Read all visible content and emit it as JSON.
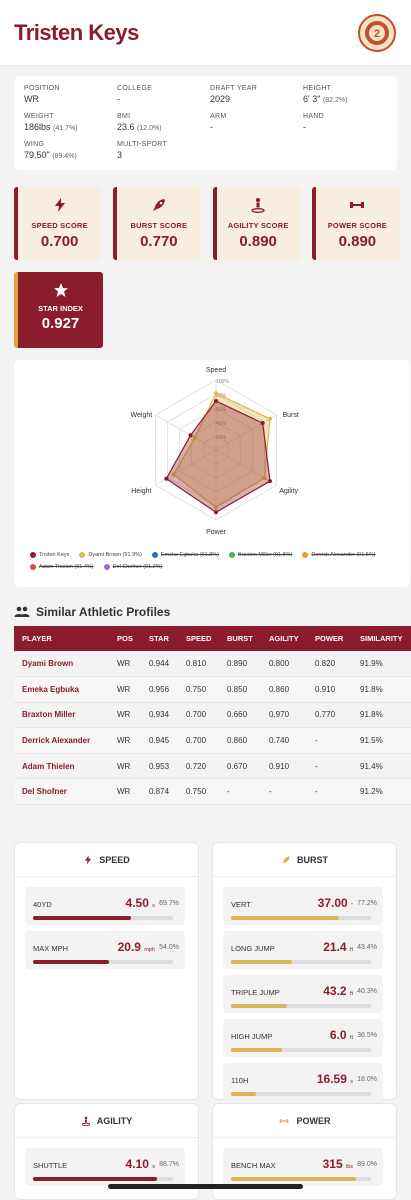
{
  "header": {
    "name": "Tristen Keys"
  },
  "info": [
    {
      "label": "POSITION",
      "value": "WR",
      "pct": ""
    },
    {
      "label": "COLLEGE",
      "value": "-",
      "pct": ""
    },
    {
      "label": "DRAFT YEAR",
      "value": "2029",
      "pct": ""
    },
    {
      "label": "HEIGHT",
      "value": "6' 3\"",
      "pct": "(82.2%)"
    },
    {
      "label": "WEIGHT",
      "value": "186lbs",
      "pct": "(41.7%)"
    },
    {
      "label": "BMI",
      "value": "23.6",
      "pct": "(12.0%)"
    },
    {
      "label": "ARM",
      "value": "-",
      "pct": ""
    },
    {
      "label": "HAND",
      "value": "-",
      "pct": ""
    },
    {
      "label": "WING",
      "value": "79.50\"",
      "pct": "(89.4%)"
    },
    {
      "label": "MULTI-SPORT",
      "value": "3",
      "pct": ""
    }
  ],
  "scores": [
    {
      "label": "SPEED SCORE",
      "value": "0.700",
      "icon": "bolt-icon"
    },
    {
      "label": "BURST SCORE",
      "value": "0.770",
      "icon": "rocket-icon"
    },
    {
      "label": "AGILITY SCORE",
      "value": "0.890",
      "icon": "agility-icon"
    },
    {
      "label": "POWER SCORE",
      "value": "0.890",
      "icon": "dumbbell-icon"
    }
  ],
  "star": {
    "label": "STAR INDEX",
    "value": "0.927",
    "icon": "star-icon"
  },
  "radar": {
    "axes": [
      "Speed",
      "Burst",
      "Agility",
      "Power",
      "Height",
      "Weight"
    ],
    "ring_labels": [
      "100%",
      "80%",
      "60%",
      "40%",
      "20%"
    ],
    "series": [
      {
        "name": "Tristen Keys",
        "color": "#8b1c2c",
        "values": [
          0.7,
          0.77,
          0.89,
          0.89,
          0.82,
          0.42
        ]
      },
      {
        "name": "Dyami Brown (91.9%)",
        "color": "#e0b84a",
        "values": [
          0.81,
          0.89,
          0.8,
          0.82,
          0.7,
          0.35
        ]
      }
    ]
  },
  "legend": {
    "row1": [
      {
        "label": "Tristen Keys",
        "color": "#8b1c2c",
        "off": false
      },
      {
        "label": "Dyami Brown (91.9%)",
        "color": "#e0b84a",
        "off": false
      },
      {
        "label": "Emeka Egbuka (91.8%)",
        "color": "#2f6db3",
        "off": true
      },
      {
        "label": "Braxton Miller (91.8%)",
        "color": "#4caf50",
        "off": true
      },
      {
        "label": "Derrick Alexander (91.5%)",
        "color": "#e89a2c",
        "off": true
      }
    ],
    "row2": [
      {
        "label": "Adam Thielen (91.4%)",
        "color": "#e04848",
        "off": true
      },
      {
        "label": "Del Shofner (91.2%)",
        "color": "#9b6dd1",
        "off": true
      }
    ]
  },
  "similar": {
    "title": "Similar Athletic Profiles",
    "columns": [
      "PLAYER",
      "POS",
      "STAR",
      "SPEED",
      "BURST",
      "AGILITY",
      "POWER",
      "SIMILARITY"
    ],
    "rows": [
      [
        "Dyami Brown",
        "WR",
        "0.944",
        "0.810",
        "0.890",
        "0.800",
        "0.820",
        "91.9%"
      ],
      [
        "Emeka Egbuka",
        "WR",
        "0.956",
        "0.750",
        "0.850",
        "0.860",
        "0.910",
        "91.8%"
      ],
      [
        "Braxton Miller",
        "WR",
        "0.934",
        "0.700",
        "0.660",
        "0.970",
        "0.770",
        "91.8%"
      ],
      [
        "Derrick Alexander",
        "WR",
        "0.945",
        "0.700",
        "0.860",
        "0.740",
        "-",
        "91.5%"
      ],
      [
        "Adam Thielen",
        "WR",
        "0.953",
        "0.720",
        "0.670",
        "0.910",
        "-",
        "91.4%"
      ],
      [
        "Del Shofner",
        "WR",
        "0.874",
        "0.750",
        "-",
        "-",
        "-",
        "91.2%"
      ]
    ]
  },
  "panels": {
    "speed": {
      "title": "SPEED",
      "color": "#8b1c2c",
      "metrics": [
        {
          "label": "40YD",
          "value": "4.50",
          "unit": "s",
          "pct": "69.7%",
          "fill": 0.697
        },
        {
          "label": "MAX MPH",
          "value": "20.9",
          "unit": "mph",
          "pct": "54.0%",
          "fill": 0.54
        }
      ]
    },
    "burst": {
      "title": "BURST",
      "color": "#d9b55a",
      "metrics": [
        {
          "label": "VERT",
          "value": "37.00",
          "unit": "\"",
          "pct": "77.2%",
          "fill": 0.772
        },
        {
          "label": "LONG JUMP",
          "value": "21.4",
          "unit": "ft",
          "pct": "43.4%",
          "fill": 0.434
        },
        {
          "label": "TRIPLE JUMP",
          "value": "43.2",
          "unit": "ft",
          "pct": "40.3%",
          "fill": 0.403
        },
        {
          "label": "HIGH JUMP",
          "value": "6.0",
          "unit": "ft",
          "pct": "36.5%",
          "fill": 0.365
        },
        {
          "label": "110H",
          "value": "16.59",
          "unit": "s",
          "pct": "18.0%",
          "fill": 0.18
        }
      ]
    },
    "agility": {
      "title": "AGILITY",
      "color": "#8b1c2c",
      "metrics": [
        {
          "label": "SHUTTLE",
          "value": "4.10",
          "unit": "s",
          "pct": "88.7%",
          "fill": 0.887
        }
      ]
    },
    "power": {
      "title": "POWER",
      "color": "#d9b55a",
      "metrics": [
        {
          "label": "BENCH MAX",
          "value": "315",
          "unit": "lbs",
          "pct": "89.0%",
          "fill": 0.89
        }
      ]
    }
  }
}
